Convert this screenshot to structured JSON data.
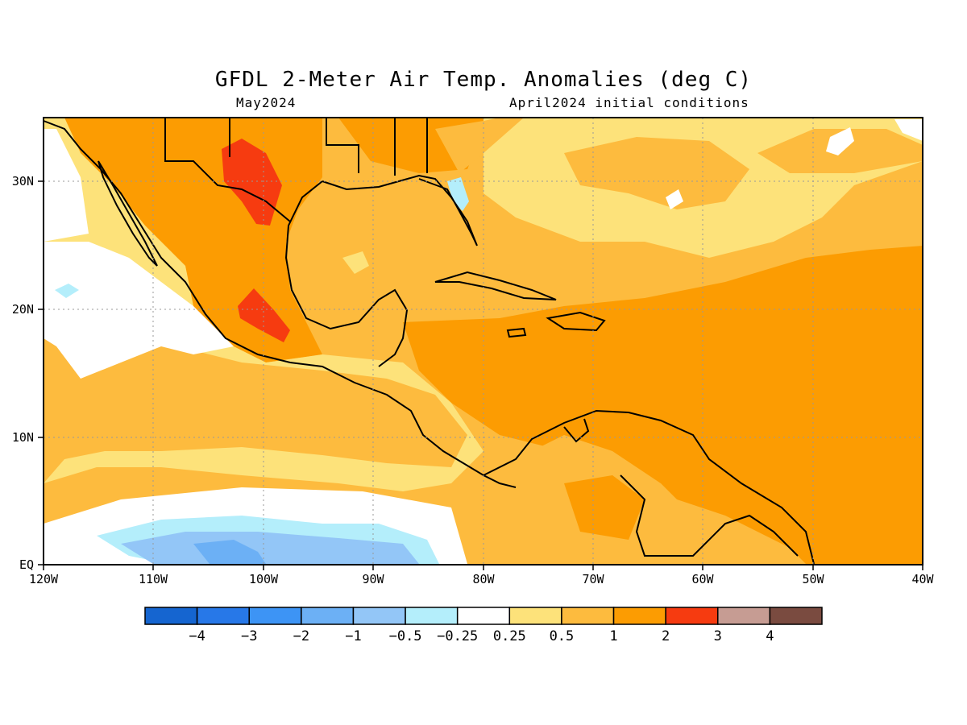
{
  "title": "GFDL 2-Meter Air Temp. Anomalies (deg C)",
  "subtitle_left": "May2024",
  "subtitle_right": "April2024 initial conditions",
  "map": {
    "lon_range": [
      -120,
      -40
    ],
    "lat_range": [
      0,
      35
    ],
    "x_ticks": [
      "120W",
      "110W",
      "100W",
      "90W",
      "80W",
      "70W",
      "60W",
      "50W",
      "40W"
    ],
    "y_ticks": [
      "EQ",
      "10N",
      "20N",
      "30N"
    ],
    "gridlines": true
  },
  "colorbar": {
    "labels": [
      "-4",
      "-3",
      "-2",
      "-1",
      "-0.5",
      "-0.25",
      "0.25",
      "0.5",
      "1",
      "2",
      "3",
      "4"
    ],
    "colors": [
      "#1565d0",
      "#2778e8",
      "#3d94f5",
      "#6cb0f5",
      "#93c6f7",
      "#b4eefb",
      "#ffffff",
      "#fde27a",
      "#fdbb3e",
      "#fc9c02",
      "#f63b10",
      "#c69c93",
      "#7a4b40"
    ]
  }
}
